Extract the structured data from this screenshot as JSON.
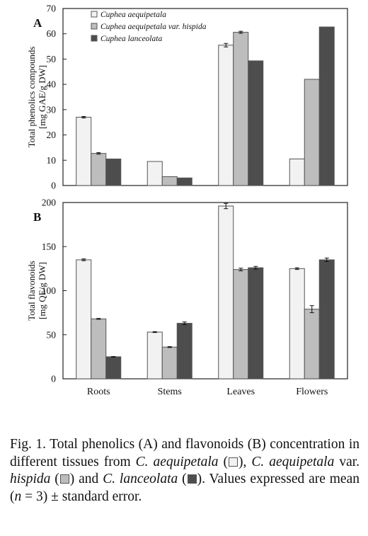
{
  "colors": {
    "aequipetala": "#f2f2f2",
    "hispida": "#bdbdbd",
    "lanceolata": "#4d4d4d",
    "bar_stroke": "#555555"
  },
  "chart_data": [
    {
      "type": "bar",
      "panel_label": "A",
      "ylabel": [
        "Total phenolics compounds",
        "[mg GAE/g DW]"
      ],
      "ylim": [
        0,
        70
      ],
      "yticks": [
        0,
        10,
        20,
        30,
        40,
        50,
        60,
        70
      ],
      "categories": [
        "Roots",
        "Stems",
        "Leaves",
        "Flowers"
      ],
      "show_xticklabels": false,
      "legend_position": "top-left",
      "series": [
        {
          "name": "Cuphea aequipetala",
          "values": [
            27,
            9.5,
            55.5,
            10.5
          ],
          "errors": [
            0.3,
            0,
            0.7,
            0
          ]
        },
        {
          "name": "Cuphea aequipetala var. hispida",
          "values": [
            12.7,
            3.5,
            60.6,
            42
          ],
          "errors": [
            0.3,
            0,
            0.4,
            0
          ]
        },
        {
          "name": "Cuphea lanceolata",
          "values": [
            10.5,
            3,
            49.3,
            62.7
          ],
          "errors": [
            0,
            0,
            0,
            0
          ]
        }
      ]
    },
    {
      "type": "bar",
      "panel_label": "B",
      "ylabel": [
        "Total flavonoids",
        "[mg QE/g DW]"
      ],
      "ylim": [
        0,
        200
      ],
      "yticks": [
        0,
        50,
        100,
        150,
        200
      ],
      "categories": [
        "Roots",
        "Stems",
        "Leaves",
        "Flowers"
      ],
      "show_xticklabels": true,
      "series": [
        {
          "name": "Cuphea aequipetala",
          "values": [
            135,
            53,
            196,
            125
          ],
          "errors": [
            1,
            0.5,
            3,
            1
          ]
        },
        {
          "name": "Cuphea aequipetala var. hispida",
          "values": [
            68,
            36,
            124,
            79
          ],
          "errors": [
            0.5,
            0.5,
            1.5,
            4
          ]
        },
        {
          "name": "Cuphea lanceolata",
          "values": [
            25,
            63,
            126,
            135
          ],
          "errors": [
            0.3,
            1.5,
            1.5,
            2
          ]
        }
      ]
    }
  ],
  "caption": {
    "p1": "Fig. 1. Total phenolics (A) and flavonoids (B) concentration in different tissues from ",
    "s1": "C. aequipetala",
    "p2": " (",
    "p3": "), ",
    "s2": "C. aequipetala",
    "p4": " var. ",
    "s3": "hispida",
    "p5": " (",
    "p6": ") and ",
    "s4": "C. lanceolata",
    "p7": " (",
    "p8": "). Values expressed are mean (",
    "n": "n",
    "p9": " = 3) ± standard error."
  }
}
